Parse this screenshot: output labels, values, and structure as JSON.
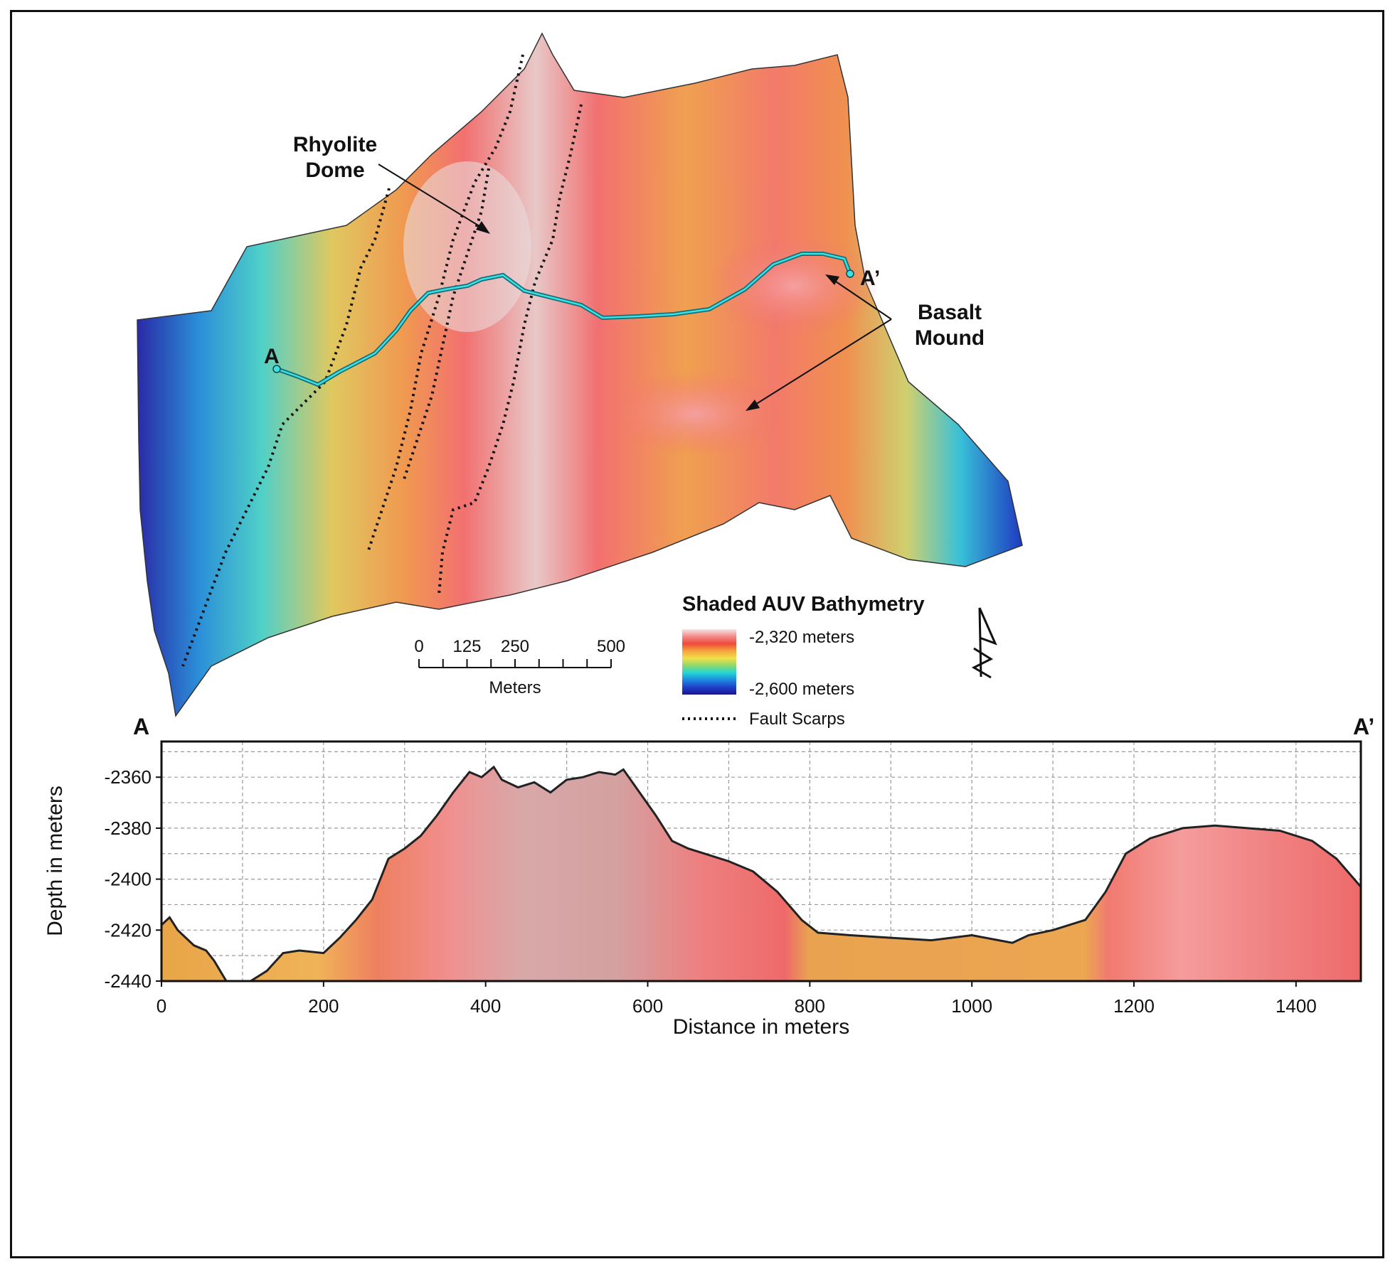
{
  "map": {
    "annotations": {
      "rhyolite_line1": "Rhyolite",
      "rhyolite_line2": "Dome",
      "basalt_line1": "Basalt",
      "basalt_line2": "Mound",
      "point_a": "A",
      "point_a_prime": "A’"
    },
    "legend": {
      "title": "Shaded AUV Bathymetry",
      "top_label": "-2,320 meters",
      "bottom_label": "-2,600 meters",
      "fault_label": "Fault Scarps",
      "ramp_colors": [
        "#f6e6e6",
        "#f38a8a",
        "#ee4a3c",
        "#f5a43a",
        "#f2e04a",
        "#8fd86a",
        "#22d6d6",
        "#1e88e0",
        "#1f3fc8",
        "#1a1590"
      ]
    },
    "scale_bar": {
      "ticks": [
        0,
        125,
        250,
        500
      ],
      "unit": "Meters"
    },
    "north_arrow": "north-arrow-icon"
  },
  "profile": {
    "label_start": "A",
    "label_end": "A’",
    "ylabel": "Depth in meters",
    "xlabel": "Distance in meters"
  },
  "chart_data": {
    "type": "area",
    "xlabel": "Distance in meters",
    "ylabel": "Depth in meters",
    "xlim": [
      0,
      1480
    ],
    "ylim": [
      -2440,
      -2346
    ],
    "xticks": [
      0,
      200,
      400,
      600,
      800,
      1000,
      1200,
      1400
    ],
    "yticks": [
      -2360,
      -2380,
      -2400,
      -2420,
      -2440
    ],
    "grid": true,
    "x": [
      0,
      10,
      20,
      40,
      55,
      65,
      80,
      95,
      110,
      130,
      150,
      170,
      200,
      220,
      240,
      260,
      280,
      300,
      320,
      340,
      360,
      380,
      395,
      410,
      420,
      440,
      460,
      480,
      500,
      520,
      540,
      560,
      570,
      590,
      610,
      630,
      650,
      670,
      700,
      730,
      760,
      790,
      810,
      850,
      900,
      950,
      1000,
      1050,
      1070,
      1100,
      1140,
      1165,
      1190,
      1220,
      1260,
      1300,
      1340,
      1380,
      1420,
      1450,
      1480
    ],
    "values": [
      -2418,
      -2415,
      -2420,
      -2426,
      -2428,
      -2432,
      -2440,
      -2442,
      -2440,
      -2436,
      -2429,
      -2428,
      -2429,
      -2423,
      -2416,
      -2408,
      -2392,
      -2388,
      -2383,
      -2375,
      -2366,
      -2358,
      -2360,
      -2356,
      -2361,
      -2364,
      -2362,
      -2366,
      -2361,
      -2360,
      -2358,
      -2359,
      -2357,
      -2366,
      -2375,
      -2385,
      -2388,
      -2390,
      -2393,
      -2397,
      -2405,
      -2416,
      -2421,
      -2422,
      -2423,
      -2424,
      -2422,
      -2425,
      -2422,
      -2420,
      -2416,
      -2405,
      -2390,
      -2384,
      -2380,
      -2379,
      -2380,
      -2381,
      -2385,
      -2392,
      -2403
    ]
  }
}
